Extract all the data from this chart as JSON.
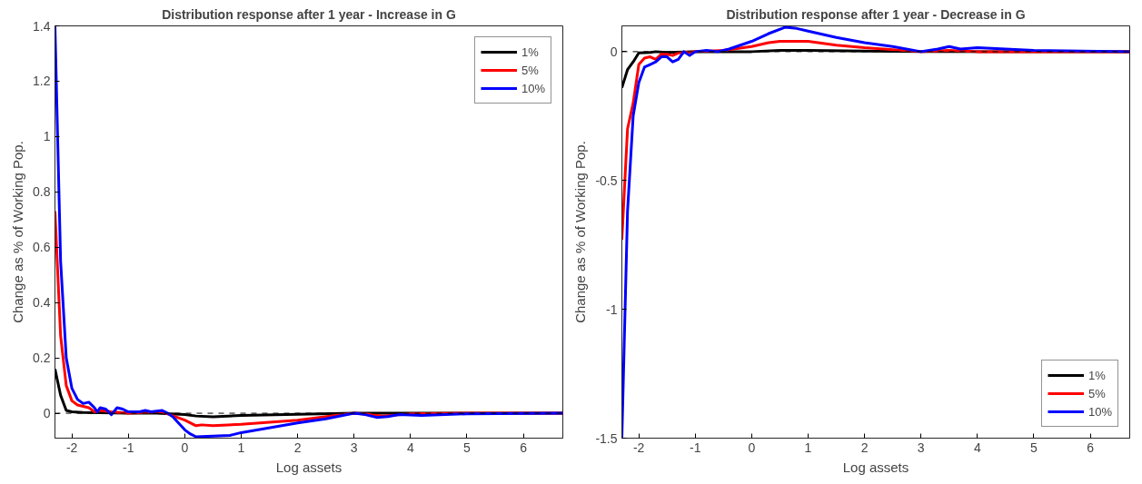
{
  "chart_data": [
    {
      "type": "line",
      "title": "Distribution response after 1 year - Increase in G",
      "xlabel": "Log assets",
      "ylabel": "Change as % of Working Pop.",
      "xlim": [
        -2.3,
        6.7
      ],
      "ylim": [
        -0.09,
        1.4
      ],
      "xticks": [
        -2,
        -1,
        0,
        1,
        2,
        3,
        4,
        5,
        6
      ],
      "yticks": [
        0,
        0.2,
        0.4,
        0.6,
        0.8,
        1,
        1.2,
        1.4
      ],
      "grid": false,
      "legend": "top right",
      "line_style": "solid",
      "marker": "none",
      "ref_lines": [
        {
          "axis": "y",
          "value": 0,
          "color": "#000000",
          "line_style": "dashed"
        }
      ],
      "series": [
        {
          "name": "1%",
          "color": "#000000",
          "x": [
            -2.3,
            -2.2,
            -2.1,
            -2.0,
            -1.8,
            -1.5,
            -1,
            -0.5,
            0,
            0.2,
            0.5,
            1,
            2,
            3,
            4,
            5,
            6.7
          ],
          "values": [
            0.16,
            0.065,
            0.01,
            0.005,
            0.003,
            0.002,
            0,
            0,
            -0.005,
            -0.01,
            -0.013,
            -0.008,
            -0.004,
            0,
            0,
            0,
            0
          ]
        },
        {
          "name": "5%",
          "color": "#ff0000",
          "x": [
            -2.3,
            -2.2,
            -2.1,
            -2.0,
            -1.9,
            -1.8,
            -1.7,
            -1.6,
            -1.5,
            -1.3,
            -1,
            -0.5,
            -0.4,
            -0.2,
            0,
            0.2,
            0.3,
            0.5,
            1,
            2,
            3,
            3.3,
            3.5,
            4,
            5,
            6.7
          ],
          "values": [
            0.73,
            0.28,
            0.1,
            0.045,
            0.03,
            0.025,
            0.02,
            0.005,
            0.01,
            0.005,
            0,
            0.005,
            0.005,
            -0.01,
            -0.025,
            -0.045,
            -0.042,
            -0.045,
            -0.04,
            -0.025,
            0,
            -0.005,
            -0.01,
            -0.002,
            0,
            0
          ]
        },
        {
          "name": "10%",
          "color": "#0000ff",
          "x": [
            -2.3,
            -2.2,
            -2.1,
            -2.0,
            -1.9,
            -1.8,
            -1.7,
            -1.6,
            -1.55,
            -1.5,
            -1.4,
            -1.3,
            -1.2,
            -1.1,
            -1,
            -0.8,
            -0.7,
            -0.6,
            -0.4,
            -0.3,
            -0.2,
            0,
            0.1,
            0.2,
            0.5,
            0.8,
            1,
            2,
            2.5,
            3,
            3.2,
            3.4,
            3.6,
            3.8,
            4.2,
            5,
            6.7
          ],
          "values": [
            1.4,
            0.55,
            0.2,
            0.09,
            0.05,
            0.035,
            0.04,
            0.02,
            0.005,
            0.02,
            0.015,
            -0.005,
            0.02,
            0.015,
            0.005,
            0.005,
            0.01,
            0.005,
            0.01,
            0,
            -0.015,
            -0.06,
            -0.075,
            -0.085,
            -0.083,
            -0.08,
            -0.07,
            -0.035,
            -0.02,
            0,
            -0.005,
            -0.015,
            -0.012,
            -0.005,
            -0.008,
            -0.002,
            0
          ]
        }
      ]
    },
    {
      "type": "line",
      "title": "Distribution response after 1 year - Decrease in G",
      "xlabel": "Log assets",
      "ylabel": "Change as % of Working Pop.",
      "xlim": [
        -2.3,
        6.7
      ],
      "ylim": [
        -1.5,
        0.1
      ],
      "xticks": [
        -2,
        -1,
        0,
        1,
        2,
        3,
        4,
        5,
        6
      ],
      "yticks": [
        -1.5,
        -1,
        -0.5,
        0
      ],
      "grid": false,
      "legend": "bottom right",
      "line_style": "solid",
      "marker": "none",
      "ref_lines": [
        {
          "axis": "y",
          "value": 0,
          "color": "#000000",
          "line_style": "dashed"
        }
      ],
      "series": [
        {
          "name": "1%",
          "color": "#000000",
          "x": [
            -2.3,
            -2.2,
            -2.1,
            -2.0,
            -1.8,
            -1.7,
            -1.5,
            -1,
            0,
            0.5,
            1,
            2,
            3,
            6.7
          ],
          "values": [
            -0.14,
            -0.07,
            -0.04,
            -0.005,
            -0.003,
            0,
            -0.003,
            0,
            0,
            0.005,
            0.005,
            0.002,
            0,
            0
          ]
        },
        {
          "name": "5%",
          "color": "#ff0000",
          "x": [
            -2.3,
            -2.2,
            -2.1,
            -2.0,
            -1.9,
            -1.8,
            -1.7,
            -1.6,
            -1.5,
            -1.4,
            -1.3,
            -1.0,
            -0.5,
            0,
            0.3,
            0.5,
            0.7,
            1,
            1.5,
            2,
            3,
            3.5,
            4,
            6.7
          ],
          "values": [
            -0.73,
            -0.3,
            -0.2,
            -0.05,
            -0.025,
            -0.02,
            -0.03,
            -0.01,
            -0.01,
            -0.015,
            -0.005,
            0,
            0.005,
            0.02,
            0.035,
            0.04,
            0.04,
            0.04,
            0.025,
            0.015,
            0,
            0.005,
            0,
            0
          ]
        },
        {
          "name": "10%",
          "color": "#0000ff",
          "x": [
            -2.3,
            -2.2,
            -2.1,
            -2.0,
            -1.9,
            -1.8,
            -1.7,
            -1.6,
            -1.5,
            -1.4,
            -1.3,
            -1.2,
            -1.1,
            -1,
            -0.8,
            -0.6,
            -0.4,
            0,
            0.3,
            0.6,
            0.8,
            1,
            1.5,
            2,
            2.5,
            3,
            3.3,
            3.5,
            3.7,
            4,
            4.5,
            5,
            6.7
          ],
          "values": [
            -1.5,
            -0.62,
            -0.25,
            -0.12,
            -0.06,
            -0.05,
            -0.04,
            -0.02,
            -0.02,
            -0.04,
            -0.03,
            0,
            -0.015,
            0,
            0.005,
            0,
            0.01,
            0.04,
            0.07,
            0.095,
            0.09,
            0.08,
            0.055,
            0.035,
            0.02,
            0,
            0.01,
            0.02,
            0.01,
            0.015,
            0.01,
            0.005,
            0
          ]
        }
      ]
    }
  ]
}
